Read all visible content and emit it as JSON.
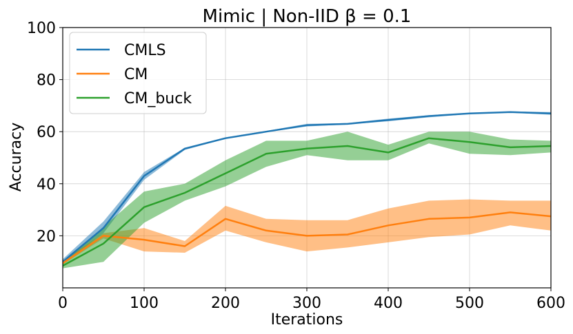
{
  "chart_data": {
    "type": "line",
    "title": "Mimic | Non-IID β = 0.1",
    "xlabel": "Iterations",
    "ylabel": "Accuracy",
    "xlim": [
      0,
      600
    ],
    "ylim": [
      0,
      100
    ],
    "xticks": [
      0,
      100,
      200,
      300,
      400,
      500,
      600
    ],
    "yticks": [
      20,
      40,
      60,
      80,
      100
    ],
    "grid": true,
    "legend_position": "top-left",
    "x": [
      0,
      50,
      100,
      150,
      200,
      250,
      300,
      350,
      400,
      450,
      500,
      550,
      600
    ],
    "series": [
      {
        "name": "CMLS",
        "color": "#1f77b4",
        "values": [
          10,
          23,
          43,
          53.5,
          57.5,
          60,
          62.5,
          63,
          64.5,
          66,
          67,
          67.5,
          67
        ],
        "lower": [
          9,
          21,
          41.5,
          53,
          57.3,
          59.8,
          62,
          62.8,
          64,
          65.5,
          66.8,
          67.3,
          66.5
        ],
        "upper": [
          11,
          25.5,
          44.5,
          53.8,
          57.8,
          60.3,
          63,
          63.3,
          65,
          66.3,
          67.2,
          67.8,
          67.5
        ]
      },
      {
        "name": "CM",
        "color": "#ff7f0e",
        "values": [
          9.5,
          20,
          18.5,
          16,
          26.5,
          22,
          20,
          20.5,
          24,
          26.5,
          27,
          29,
          27.5
        ],
        "lower": [
          9,
          19,
          14,
          13.5,
          22,
          17.5,
          14,
          15.5,
          17.5,
          19.5,
          20.5,
          24,
          22
        ],
        "upper": [
          10.5,
          21,
          23,
          18,
          31.5,
          26.5,
          26,
          26,
          30.5,
          33.5,
          34,
          33.5,
          33.5
        ]
      },
      {
        "name": "CM_buck",
        "color": "#2ca02c",
        "values": [
          8.5,
          17,
          31,
          36.5,
          44,
          51.5,
          53.5,
          54.5,
          52,
          57.5,
          56,
          54,
          54.5
        ],
        "lower": [
          7.5,
          10,
          25,
          33.5,
          39,
          46.5,
          51,
          49,
          49,
          55.5,
          51.5,
          51,
          52
        ],
        "upper": [
          9.5,
          23.5,
          37,
          40,
          49,
          56.5,
          56.5,
          60,
          55,
          60,
          60,
          57,
          56.5
        ]
      }
    ]
  }
}
